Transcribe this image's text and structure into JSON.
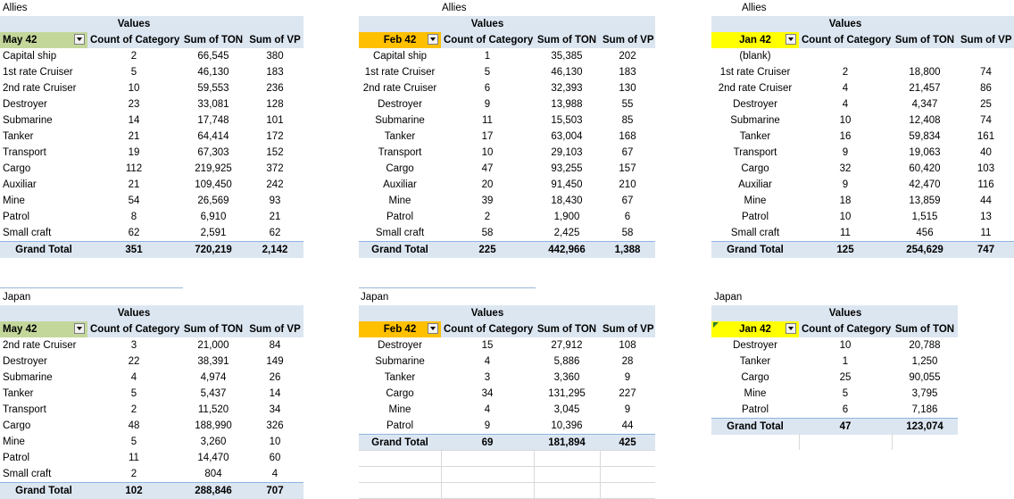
{
  "colors": {
    "pivot_header": "#dce6f1",
    "may_filter": "#c4d79b",
    "feb_filter": "#ffc000",
    "jan_filter": "#ffff00"
  },
  "labels": {
    "allies_1": "Allies",
    "allies_2": "Allies",
    "allies_3": "Allies",
    "japan_1": "Japan",
    "japan_2": "Japan",
    "japan_3": "Japan"
  },
  "columns": {
    "values": "Values",
    "count": "Count of Category",
    "ton": "Sum of TON",
    "vp": "Sum of VP"
  },
  "pivots": {
    "allies_may": {
      "filter": "May 42",
      "rows": [
        [
          "Capital ship",
          "2",
          "66,545",
          "380"
        ],
        [
          "1st rate Cruiser",
          "5",
          "46,130",
          "183"
        ],
        [
          "2nd rate Cruiser",
          "10",
          "59,553",
          "236"
        ],
        [
          "Destroyer",
          "23",
          "33,081",
          "128"
        ],
        [
          "Submarine",
          "14",
          "17,748",
          "101"
        ],
        [
          "Tanker",
          "21",
          "64,414",
          "172"
        ],
        [
          "Transport",
          "19",
          "67,303",
          "152"
        ],
        [
          "Cargo",
          "112",
          "219,925",
          "372"
        ],
        [
          "Auxiliar",
          "21",
          "109,450",
          "242"
        ],
        [
          "Mine",
          "54",
          "26,569",
          "93"
        ],
        [
          "Patrol",
          "8",
          "6,910",
          "21"
        ],
        [
          "Small craft",
          "62",
          "2,591",
          "62"
        ]
      ],
      "total": [
        "Grand Total",
        "351",
        "720,219",
        "2,142"
      ]
    },
    "allies_feb": {
      "filter": "Feb 42",
      "rows": [
        [
          "Capital ship",
          "1",
          "35,385",
          "202"
        ],
        [
          "1st rate Cruiser",
          "5",
          "46,130",
          "183"
        ],
        [
          "2nd rate Cruiser",
          "6",
          "32,393",
          "130"
        ],
        [
          "Destroyer",
          "9",
          "13,988",
          "55"
        ],
        [
          "Submarine",
          "11",
          "15,503",
          "85"
        ],
        [
          "Tanker",
          "17",
          "63,004",
          "168"
        ],
        [
          "Transport",
          "10",
          "29,103",
          "67"
        ],
        [
          "Cargo",
          "47",
          "93,255",
          "157"
        ],
        [
          "Auxiliar",
          "20",
          "91,450",
          "210"
        ],
        [
          "Mine",
          "39",
          "18,430",
          "67"
        ],
        [
          "Patrol",
          "2",
          "1,900",
          "6"
        ],
        [
          "Small craft",
          "58",
          "2,425",
          "58"
        ]
      ],
      "total": [
        "Grand Total",
        "225",
        "442,966",
        "1,388"
      ]
    },
    "allies_jan": {
      "filter": "Jan 42",
      "rows": [
        [
          "(blank)",
          "",
          "",
          ""
        ],
        [
          "1st rate Cruiser",
          "2",
          "18,800",
          "74"
        ],
        [
          "2nd rate Cruiser",
          "4",
          "21,457",
          "86"
        ],
        [
          "Destroyer",
          "4",
          "4,347",
          "25"
        ],
        [
          "Submarine",
          "10",
          "12,408",
          "74"
        ],
        [
          "Tanker",
          "16",
          "59,834",
          "161"
        ],
        [
          "Transport",
          "9",
          "19,063",
          "40"
        ],
        [
          "Cargo",
          "32",
          "60,420",
          "103"
        ],
        [
          "Auxiliar",
          "9",
          "42,470",
          "116"
        ],
        [
          "Mine",
          "18",
          "13,859",
          "44"
        ],
        [
          "Patrol",
          "10",
          "1,515",
          "13"
        ],
        [
          "Small craft",
          "11",
          "456",
          "11"
        ]
      ],
      "total": [
        "Grand Total",
        "125",
        "254,629",
        "747"
      ]
    },
    "japan_may": {
      "filter": "May 42",
      "rows": [
        [
          "2nd rate Cruiser",
          "3",
          "21,000",
          "84"
        ],
        [
          "Destroyer",
          "22",
          "38,391",
          "149"
        ],
        [
          "Submarine",
          "4",
          "4,974",
          "26"
        ],
        [
          "Tanker",
          "5",
          "5,437",
          "14"
        ],
        [
          "Transport",
          "2",
          "11,520",
          "34"
        ],
        [
          "Cargo",
          "48",
          "188,990",
          "326"
        ],
        [
          "Mine",
          "5",
          "3,260",
          "10"
        ],
        [
          "Patrol",
          "11",
          "14,470",
          "60"
        ],
        [
          "Small craft",
          "2",
          "804",
          "4"
        ]
      ],
      "total": [
        "Grand Total",
        "102",
        "288,846",
        "707"
      ]
    },
    "japan_feb": {
      "filter": "Feb 42",
      "rows": [
        [
          "Destroyer",
          "15",
          "27,912",
          "108"
        ],
        [
          "Submarine",
          "4",
          "5,886",
          "28"
        ],
        [
          "Tanker",
          "3",
          "3,360",
          "9"
        ],
        [
          "Cargo",
          "34",
          "131,295",
          "227"
        ],
        [
          "Mine",
          "4",
          "3,045",
          "9"
        ],
        [
          "Patrol",
          "9",
          "10,396",
          "44"
        ]
      ],
      "total": [
        "Grand Total",
        "69",
        "181,894",
        "425"
      ]
    },
    "japan_jan": {
      "filter": "Jan 42",
      "rows": [
        [
          "Destroyer",
          "10",
          "20,788"
        ],
        [
          "Tanker",
          "1",
          "1,250"
        ],
        [
          "Cargo",
          "25",
          "90,055"
        ],
        [
          "Mine",
          "5",
          "3,795"
        ],
        [
          "Patrol",
          "6",
          "7,186"
        ]
      ],
      "total": [
        "Grand Total",
        "47",
        "123,074"
      ]
    }
  }
}
